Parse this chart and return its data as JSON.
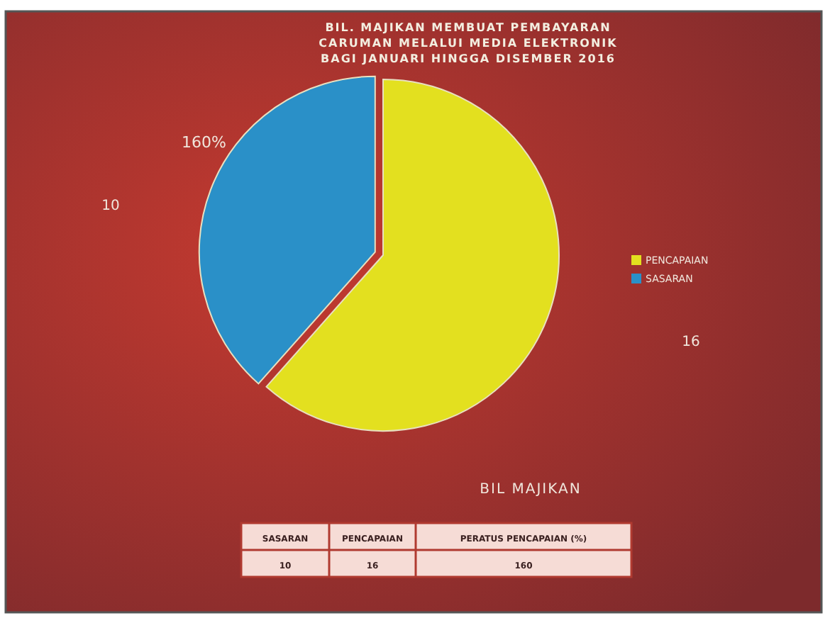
{
  "chart_data": {
    "type": "pie",
    "title": "BIL. MAJIKAN MEMBUAT PEMBAYARAN\nCARUMAN MELALUI MEDIA ELEKTRONIK\nBAGI JANUARI HINGGA DISEMBER 2016",
    "categories": [
      "PENCAPAIAN",
      "SASARAN"
    ],
    "values": [
      16,
      10
    ],
    "colors": [
      "#e3e01f",
      "#2a90c8"
    ],
    "data_labels": true,
    "legend": "right",
    "annotations": [
      "160%",
      "BIL MAJIKAN",
      "SASARAN",
      "PENCAPAIAN",
      "PERATUS PENCAPAIAN (%)",
      "10",
      "16",
      "160"
    ]
  }
}
